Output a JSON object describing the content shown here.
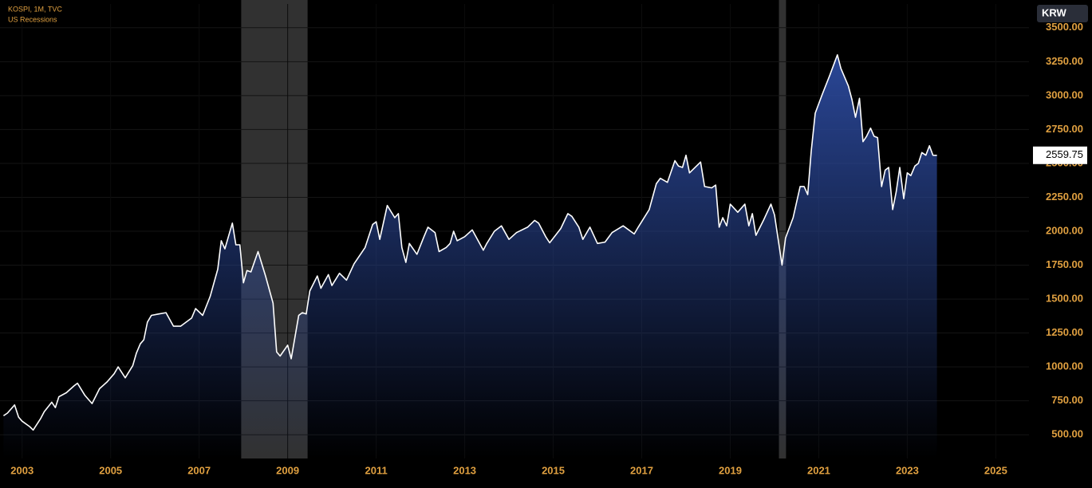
{
  "chart_data": {
    "type": "area",
    "title": "KOSPI, 1M, TVC",
    "currency": "KRW",
    "recessions": {
      "name": "US Recessions",
      "color": "#3a3a3a",
      "spans": [
        [
          2007.95,
          2009.45
        ],
        [
          2020.1,
          2020.26
        ]
      ]
    },
    "x": [
      2002.58,
      2002.67,
      2002.83,
      2002.92,
      2003.0,
      2003.17,
      2003.25,
      2003.42,
      2003.5,
      2003.67,
      2003.75,
      2003.83,
      2004.0,
      2004.17,
      2004.25,
      2004.42,
      2004.58,
      2004.75,
      2004.92,
      2005.08,
      2005.17,
      2005.33,
      2005.5,
      2005.58,
      2005.67,
      2005.75,
      2005.83,
      2005.92,
      2006.08,
      2006.25,
      2006.42,
      2006.58,
      2006.83,
      2006.92,
      2007.08,
      2007.25,
      2007.42,
      2007.5,
      2007.58,
      2007.75,
      2007.83,
      2007.92,
      2008.0,
      2008.08,
      2008.17,
      2008.33,
      2008.5,
      2008.67,
      2008.75,
      2008.83,
      2009.0,
      2009.08,
      2009.25,
      2009.33,
      2009.42,
      2009.5,
      2009.67,
      2009.75,
      2009.92,
      2010.0,
      2010.17,
      2010.33,
      2010.5,
      2010.75,
      2010.92,
      2011.0,
      2011.08,
      2011.25,
      2011.42,
      2011.5,
      2011.58,
      2011.67,
      2011.75,
      2011.92,
      2012.08,
      2012.17,
      2012.33,
      2012.42,
      2012.58,
      2012.67,
      2012.75,
      2012.83,
      2013.0,
      2013.17,
      2013.42,
      2013.5,
      2013.67,
      2013.83,
      2014.0,
      2014.17,
      2014.42,
      2014.58,
      2014.67,
      2014.83,
      2014.92,
      2015.17,
      2015.33,
      2015.42,
      2015.58,
      2015.67,
      2015.83,
      2016.0,
      2016.17,
      2016.33,
      2016.58,
      2016.83,
      2016.92,
      2017.17,
      2017.33,
      2017.42,
      2017.58,
      2017.75,
      2017.83,
      2017.92,
      2018.0,
      2018.08,
      2018.33,
      2018.42,
      2018.58,
      2018.67,
      2018.75,
      2018.83,
      2018.92,
      2019.0,
      2019.17,
      2019.33,
      2019.42,
      2019.5,
      2019.58,
      2019.75,
      2019.92,
      2020.0,
      2020.17,
      2020.25,
      2020.42,
      2020.58,
      2020.67,
      2020.75,
      2020.83,
      2020.92,
      2021.08,
      2021.25,
      2021.42,
      2021.5,
      2021.67,
      2021.75,
      2021.83,
      2021.92,
      2022.0,
      2022.08,
      2022.17,
      2022.25,
      2022.33,
      2022.42,
      2022.5,
      2022.58,
      2022.67,
      2022.75,
      2022.83,
      2022.92,
      2023.0,
      2023.08,
      2023.17,
      2023.25,
      2023.33,
      2023.42,
      2023.5,
      2023.58,
      2023.67
    ],
    "series": [
      {
        "name": "KOSPI",
        "color": "#ffffff",
        "fill": "#2c4a9e",
        "values": [
          640,
          660,
          720,
          630,
          600,
          560,
          535,
          620,
          670,
          740,
          700,
          780,
          810,
          860,
          880,
          790,
          730,
          840,
          890,
          950,
          1000,
          920,
          1010,
          1100,
          1170,
          1200,
          1330,
          1380,
          1390,
          1400,
          1300,
          1300,
          1360,
          1430,
          1380,
          1520,
          1720,
          1930,
          1870,
          2060,
          1900,
          1900,
          1620,
          1710,
          1700,
          1850,
          1670,
          1470,
          1110,
          1080,
          1160,
          1060,
          1380,
          1400,
          1390,
          1560,
          1670,
          1580,
          1680,
          1600,
          1690,
          1640,
          1760,
          1880,
          2050,
          2070,
          1940,
          2190,
          2100,
          2130,
          1880,
          1770,
          1910,
          1830,
          1960,
          2030,
          1990,
          1850,
          1880,
          1910,
          2000,
          1930,
          1960,
          2010,
          1860,
          1910,
          2000,
          2040,
          1940,
          1990,
          2030,
          2080,
          2060,
          1960,
          1915,
          2020,
          2130,
          2110,
          2030,
          1940,
          2030,
          1910,
          1920,
          1990,
          2040,
          1980,
          2030,
          2160,
          2350,
          2390,
          2360,
          2520,
          2480,
          2470,
          2560,
          2430,
          2510,
          2330,
          2320,
          2340,
          2030,
          2100,
          2040,
          2200,
          2140,
          2200,
          2040,
          2130,
          1970,
          2080,
          2200,
          2120,
          1750,
          1950,
          2100,
          2330,
          2330,
          2270,
          2590,
          2870,
          3010,
          3150,
          3300,
          3200,
          3070,
          2970,
          2840,
          2980,
          2660,
          2700,
          2760,
          2700,
          2690,
          2330,
          2450,
          2470,
          2160,
          2290,
          2470,
          2240,
          2430,
          2410,
          2480,
          2500,
          2580,
          2560,
          2630,
          2560,
          2559.75
        ]
      }
    ],
    "xlim": [
      2002.5,
      2025.75
    ],
    "xticks": [
      2003,
      2005,
      2007,
      2009,
      2011,
      2013,
      2015,
      2017,
      2019,
      2021,
      2023,
      2025
    ],
    "ylim": [
      325,
      3675
    ],
    "yticks": [
      {
        "value": 500,
        "label": "500.00"
      },
      {
        "value": 750,
        "label": "750.00"
      },
      {
        "value": 1000,
        "label": "1000.00"
      },
      {
        "value": 1250,
        "label": "1250.00"
      },
      {
        "value": 1500,
        "label": "1500.00"
      },
      {
        "value": 1750,
        "label": "1750.00"
      },
      {
        "value": 2000,
        "label": "2000.00"
      },
      {
        "value": 2250,
        "label": "2250.00"
      },
      {
        "value": 2500,
        "label": "2500.00"
      },
      {
        "value": 2750,
        "label": "2750.00"
      },
      {
        "value": 3000,
        "label": "3000.00"
      },
      {
        "value": 3250,
        "label": "3250.00"
      },
      {
        "value": 3500,
        "label": "3500.00"
      }
    ],
    "grid": true
  }
}
